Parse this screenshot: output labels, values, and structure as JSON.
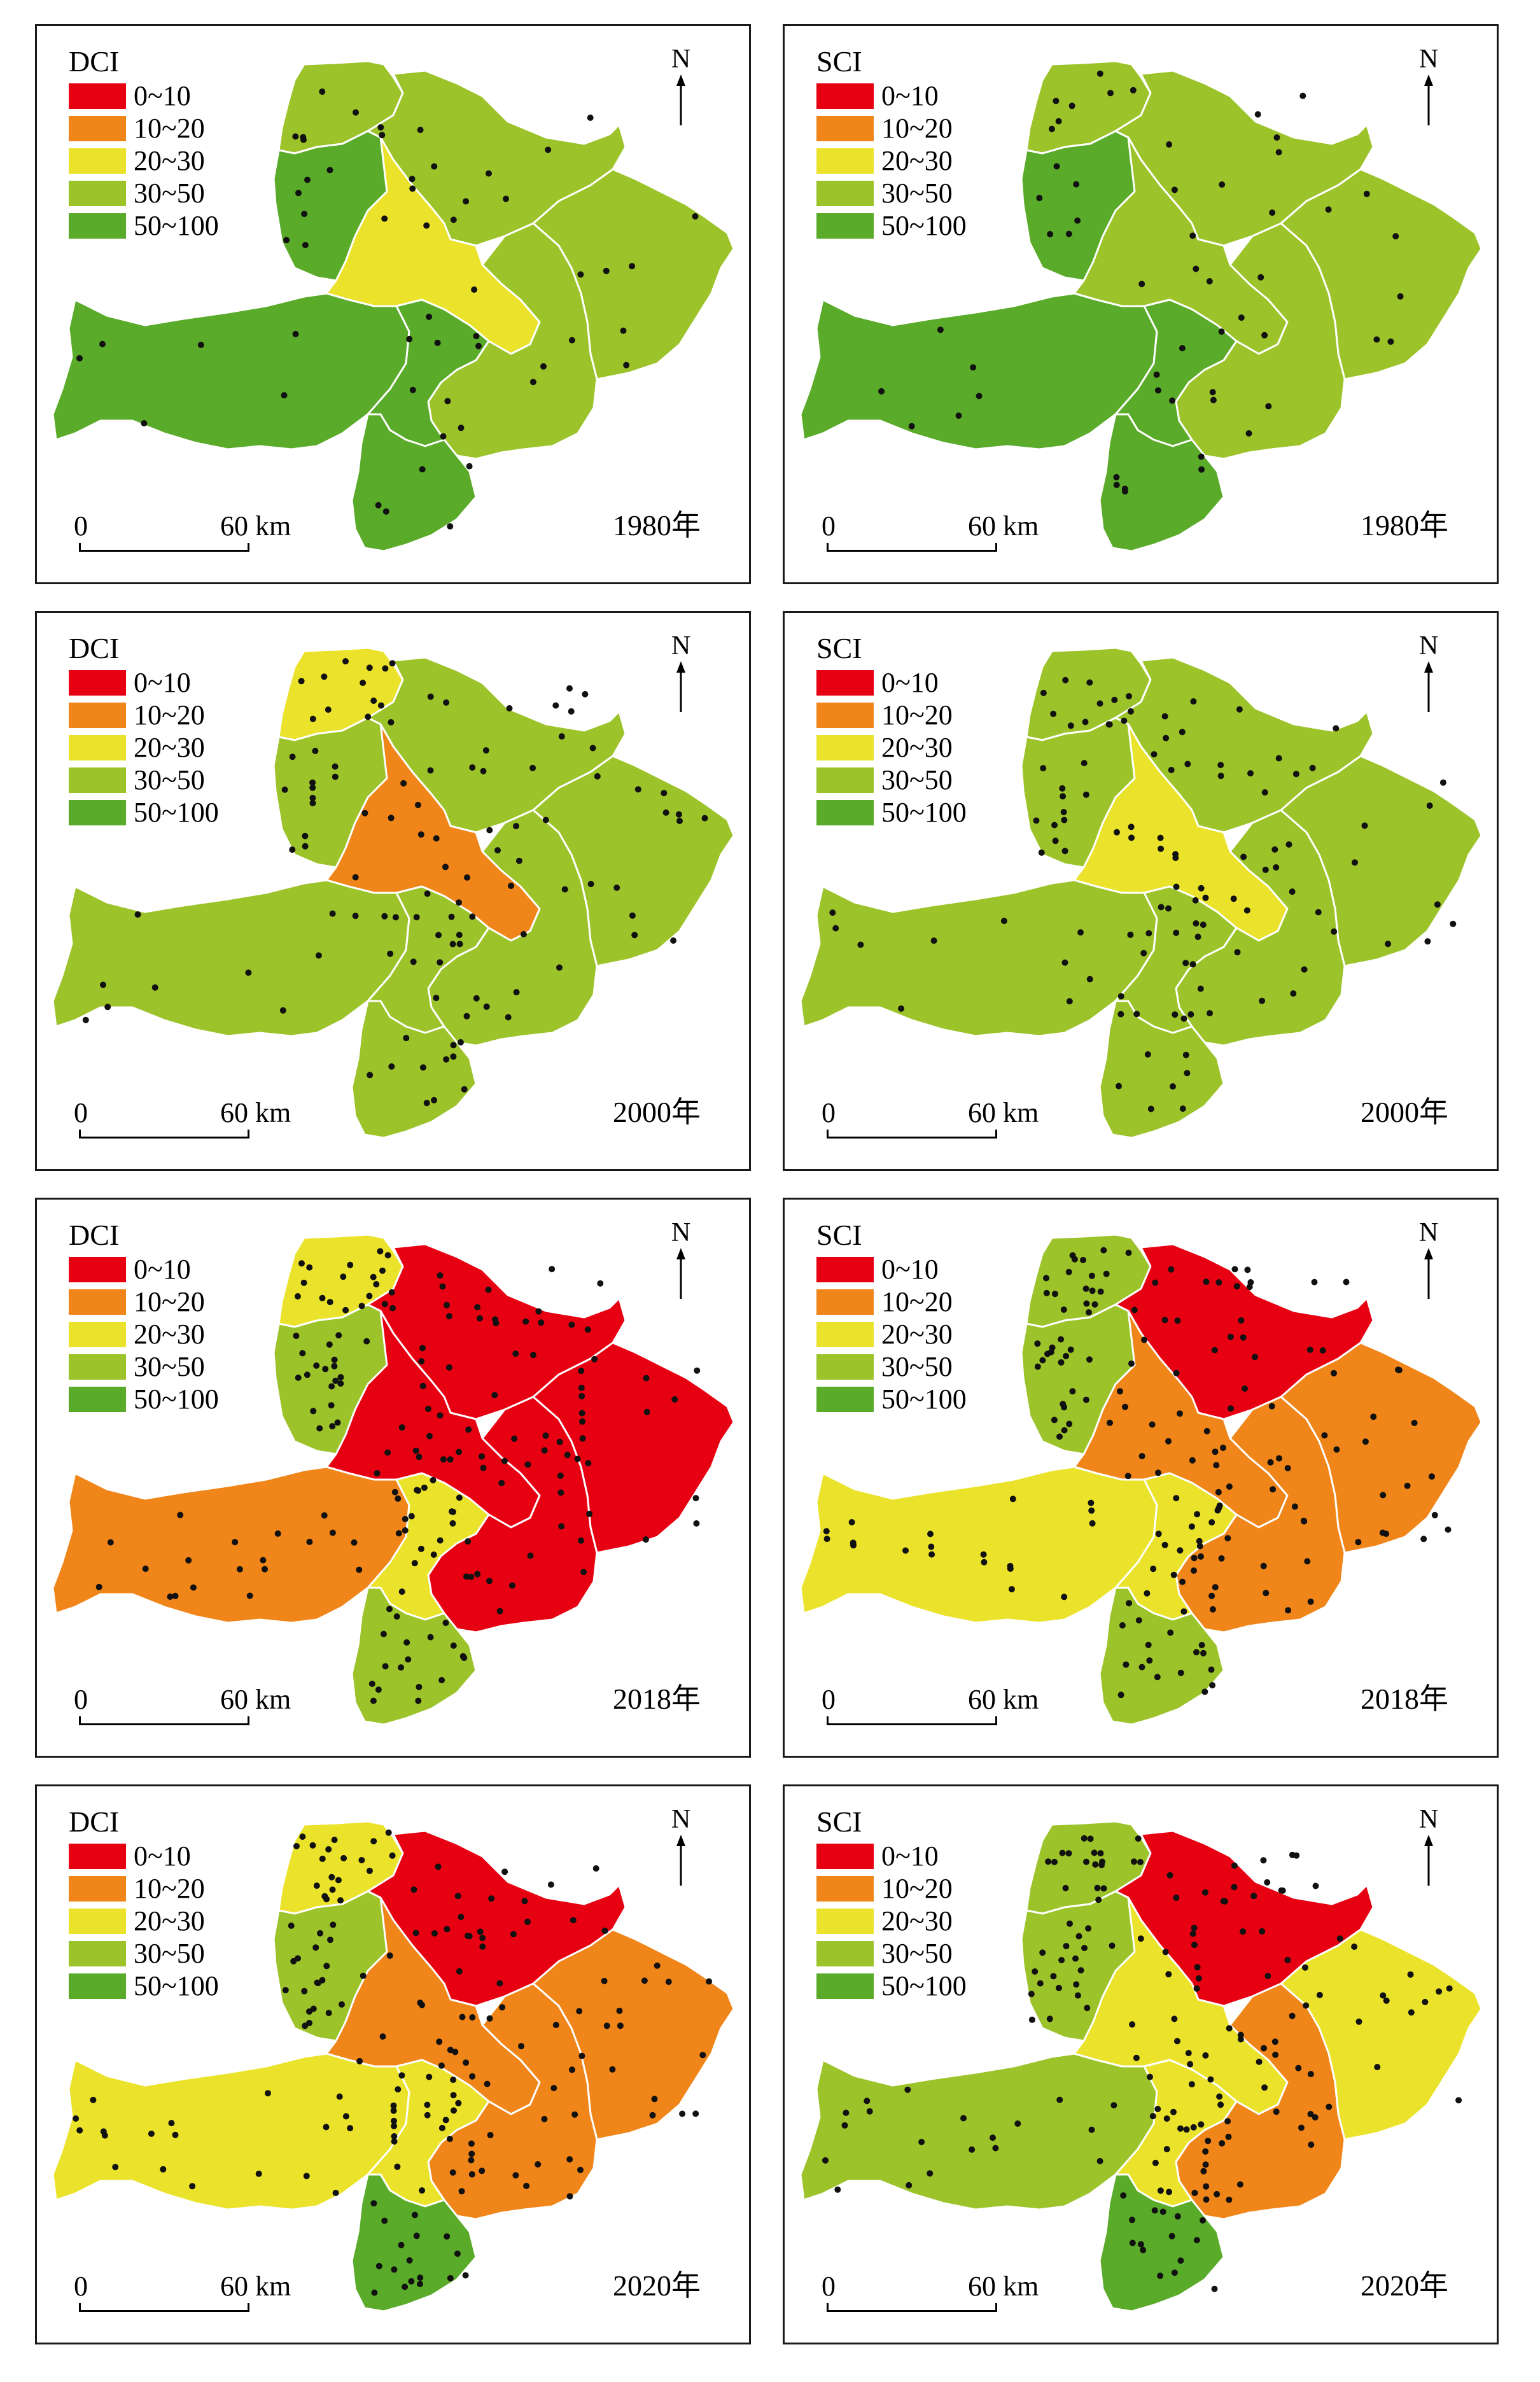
{
  "legend_classes": [
    {
      "label": "0~10",
      "color": "#e60012"
    },
    {
      "label": "10~20",
      "color": "#f08519"
    },
    {
      "label": "20~30",
      "color": "#ebe32b"
    },
    {
      "label": "30~50",
      "color": "#9cc32a"
    },
    {
      "label": "50~100",
      "color": "#5aab2a"
    }
  ],
  "north_label": "N",
  "scale": {
    "start": "0",
    "end": "60 km"
  },
  "regions": [
    "northwest",
    "north",
    "northeast",
    "west",
    "center",
    "east",
    "southwest",
    "south-center",
    "south"
  ],
  "panels": [
    {
      "index": "DCI",
      "year": "1980年",
      "region_class": {
        "northwest": "30~50",
        "north": "30~50",
        "northeast": "30~50",
        "west": "50~100",
        "center": "20~30",
        "east": "30~50",
        "southwest": "50~100",
        "south-center": "50~100",
        "south": "50~100"
      }
    },
    {
      "index": "SCI",
      "year": "1980年",
      "region_class": {
        "northwest": "30~50",
        "north": "30~50",
        "northeast": "30~50",
        "west": "50~100",
        "center": "30~50",
        "east": "30~50",
        "southwest": "50~100",
        "south-center": "50~100",
        "south": "50~100"
      }
    },
    {
      "index": "DCI",
      "year": "2000年",
      "region_class": {
        "northwest": "20~30",
        "north": "30~50",
        "northeast": "30~50",
        "west": "30~50",
        "center": "10~20",
        "east": "30~50",
        "southwest": "30~50",
        "south-center": "30~50",
        "south": "30~50"
      }
    },
    {
      "index": "SCI",
      "year": "2000年",
      "region_class": {
        "northwest": "30~50",
        "north": "30~50",
        "northeast": "30~50",
        "west": "30~50",
        "center": "20~30",
        "east": "30~50",
        "southwest": "30~50",
        "south-center": "30~50",
        "south": "30~50"
      }
    },
    {
      "index": "DCI",
      "year": "2018年",
      "region_class": {
        "northwest": "20~30",
        "north": "0~10",
        "northeast": "0~10",
        "west": "30~50",
        "center": "0~10",
        "east": "0~10",
        "southwest": "10~20",
        "south-center": "20~30",
        "south": "30~50"
      }
    },
    {
      "index": "SCI",
      "year": "2018年",
      "region_class": {
        "northwest": "30~50",
        "north": "0~10",
        "northeast": "10~20",
        "west": "30~50",
        "center": "10~20",
        "east": "10~20",
        "southwest": "20~30",
        "south-center": "20~30",
        "south": "30~50"
      }
    },
    {
      "index": "DCI",
      "year": "2020年",
      "region_class": {
        "northwest": "20~30",
        "north": "0~10",
        "northeast": "10~20",
        "west": "30~50",
        "center": "10~20",
        "east": "10~20",
        "southwest": "20~30",
        "south-center": "20~30",
        "south": "50~100"
      }
    },
    {
      "index": "SCI",
      "year": "2020年",
      "region_class": {
        "northwest": "30~50",
        "north": "0~10",
        "northeast": "20~30",
        "west": "30~50",
        "center": "20~30",
        "east": "10~20",
        "southwest": "30~50",
        "south-center": "20~30",
        "south": "50~100"
      }
    }
  ]
}
